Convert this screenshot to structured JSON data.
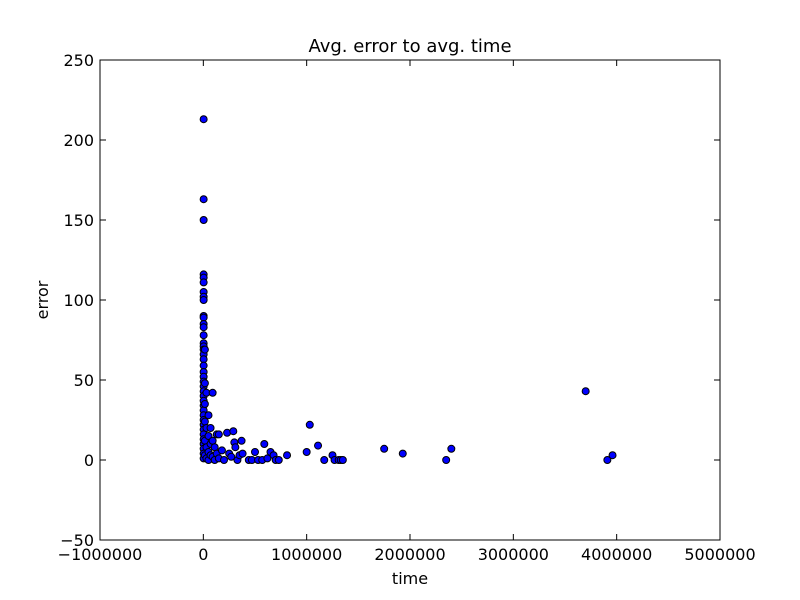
{
  "chart_data": {
    "type": "scatter",
    "title": "Avg. error to avg. time",
    "xlabel": "time",
    "ylabel": "error",
    "xlim": [
      -1000000,
      5000000
    ],
    "ylim": [
      -50,
      250
    ],
    "xticks": [
      -1000000,
      0,
      1000000,
      2000000,
      3000000,
      4000000,
      5000000
    ],
    "xtick_labels": [
      "−1000000",
      "0",
      "1000000",
      "2000000",
      "3000000",
      "4000000",
      "5000000"
    ],
    "yticks": [
      -50,
      0,
      50,
      100,
      150,
      200,
      250
    ],
    "ytick_labels": [
      "−50",
      "0",
      "50",
      "100",
      "150",
      "200",
      "250"
    ],
    "grid": false,
    "legend": "none",
    "colors": {
      "marker_fill": "#0000ff",
      "marker_edge": "#000000"
    },
    "points": [
      {
        "x": 3000,
        "y": 213
      },
      {
        "x": 3000,
        "y": 163
      },
      {
        "x": 3000,
        "y": 150
      },
      {
        "x": 3000,
        "y": 116
      },
      {
        "x": 3000,
        "y": 114
      },
      {
        "x": 3000,
        "y": 111
      },
      {
        "x": 3000,
        "y": 105
      },
      {
        "x": 3000,
        "y": 102
      },
      {
        "x": 3000,
        "y": 100
      },
      {
        "x": 3000,
        "y": 90
      },
      {
        "x": 3000,
        "y": 89
      },
      {
        "x": 3000,
        "y": 85
      },
      {
        "x": 3000,
        "y": 83
      },
      {
        "x": 3000,
        "y": 78
      },
      {
        "x": 3000,
        "y": 73
      },
      {
        "x": 3000,
        "y": 71
      },
      {
        "x": 3000,
        "y": 69
      },
      {
        "x": 3000,
        "y": 66
      },
      {
        "x": 3000,
        "y": 63
      },
      {
        "x": 3000,
        "y": 59
      },
      {
        "x": 3000,
        "y": 55
      },
      {
        "x": 3000,
        "y": 52
      },
      {
        "x": 3000,
        "y": 49
      },
      {
        "x": 3000,
        "y": 46
      },
      {
        "x": 3000,
        "y": 43
      },
      {
        "x": 3000,
        "y": 40
      },
      {
        "x": 3000,
        "y": 37
      },
      {
        "x": 3000,
        "y": 34
      },
      {
        "x": 3000,
        "y": 31
      },
      {
        "x": 3000,
        "y": 28
      },
      {
        "x": 3000,
        "y": 25
      },
      {
        "x": 3000,
        "y": 22
      },
      {
        "x": 3000,
        "y": 19
      },
      {
        "x": 3000,
        "y": 16
      },
      {
        "x": 3000,
        "y": 13
      },
      {
        "x": 3000,
        "y": 10
      },
      {
        "x": 3000,
        "y": 7
      },
      {
        "x": 3000,
        "y": 4
      },
      {
        "x": 3000,
        "y": 1
      },
      {
        "x": 15000,
        "y": 69
      },
      {
        "x": 15000,
        "y": 48
      },
      {
        "x": 15000,
        "y": 35
      },
      {
        "x": 15000,
        "y": 24
      },
      {
        "x": 15000,
        "y": 12
      },
      {
        "x": 15000,
        "y": 3
      },
      {
        "x": 30000,
        "y": 42
      },
      {
        "x": 30000,
        "y": 20
      },
      {
        "x": 30000,
        "y": 8
      },
      {
        "x": 30000,
        "y": 1
      },
      {
        "x": 50000,
        "y": 28
      },
      {
        "x": 50000,
        "y": 15
      },
      {
        "x": 50000,
        "y": 5
      },
      {
        "x": 50000,
        "y": 0
      },
      {
        "x": 70000,
        "y": 20
      },
      {
        "x": 70000,
        "y": 10
      },
      {
        "x": 70000,
        "y": 3
      },
      {
        "x": 90000,
        "y": 42
      },
      {
        "x": 90000,
        "y": 12
      },
      {
        "x": 90000,
        "y": 2
      },
      {
        "x": 110000,
        "y": 8
      },
      {
        "x": 110000,
        "y": 0
      },
      {
        "x": 130000,
        "y": 16
      },
      {
        "x": 130000,
        "y": 4
      },
      {
        "x": 150000,
        "y": 16
      },
      {
        "x": 150000,
        "y": 1
      },
      {
        "x": 180000,
        "y": 6
      },
      {
        "x": 200000,
        "y": 0
      },
      {
        "x": 230000,
        "y": 17
      },
      {
        "x": 250000,
        "y": 4
      },
      {
        "x": 270000,
        "y": 2
      },
      {
        "x": 290000,
        "y": 18
      },
      {
        "x": 300000,
        "y": 11
      },
      {
        "x": 310000,
        "y": 8
      },
      {
        "x": 330000,
        "y": 0
      },
      {
        "x": 350000,
        "y": 3
      },
      {
        "x": 370000,
        "y": 12
      },
      {
        "x": 380000,
        "y": 4
      },
      {
        "x": 440000,
        "y": 0
      },
      {
        "x": 470000,
        "y": 0
      },
      {
        "x": 500000,
        "y": 5
      },
      {
        "x": 530000,
        "y": 0
      },
      {
        "x": 570000,
        "y": 0
      },
      {
        "x": 590000,
        "y": 10
      },
      {
        "x": 620000,
        "y": 1
      },
      {
        "x": 650000,
        "y": 5
      },
      {
        "x": 680000,
        "y": 3
      },
      {
        "x": 700000,
        "y": 0
      },
      {
        "x": 730000,
        "y": 0
      },
      {
        "x": 810000,
        "y": 3
      },
      {
        "x": 1000000,
        "y": 5
      },
      {
        "x": 1030000,
        "y": 22
      },
      {
        "x": 1110000,
        "y": 9
      },
      {
        "x": 1170000,
        "y": 0
      },
      {
        "x": 1250000,
        "y": 3
      },
      {
        "x": 1270000,
        "y": 0
      },
      {
        "x": 1310000,
        "y": 0
      },
      {
        "x": 1330000,
        "y": 0
      },
      {
        "x": 1350000,
        "y": 0
      },
      {
        "x": 1750000,
        "y": 7
      },
      {
        "x": 1930000,
        "y": 4
      },
      {
        "x": 2350000,
        "y": 0
      },
      {
        "x": 2400000,
        "y": 7
      },
      {
        "x": 3700000,
        "y": 43
      },
      {
        "x": 3910000,
        "y": 0
      },
      {
        "x": 3960000,
        "y": 3
      }
    ]
  }
}
